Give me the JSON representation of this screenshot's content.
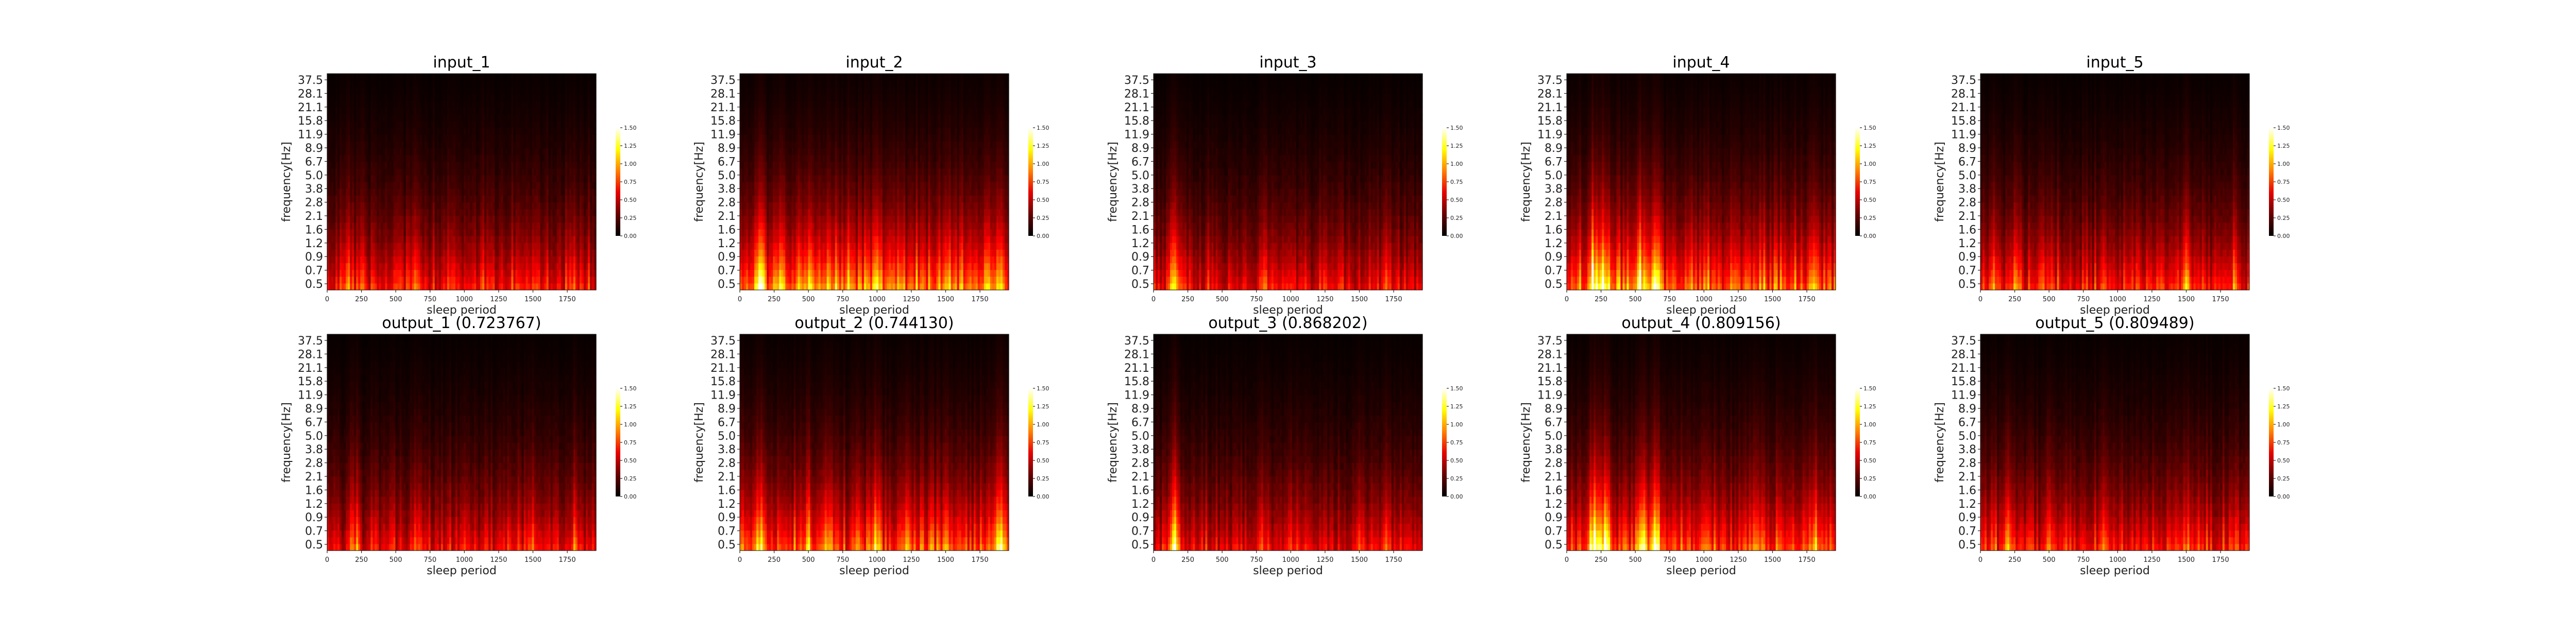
{
  "figure": {
    "background": "#ffffff"
  },
  "chart_data": [
    {
      "type": "heatmap",
      "title": "input_1",
      "xlabel": "sleep period",
      "ylabel": "frequency[Hz]",
      "xlim": [
        0,
        1960
      ],
      "yticks": [
        "0.5",
        "0.7",
        "0.9",
        "1.2",
        "1.6",
        "2.1",
        "2.8",
        "3.8",
        "5.0",
        "6.7",
        "8.9",
        "11.9",
        "15.8",
        "21.1",
        "28.1",
        "37.5"
      ],
      "xticks": [
        0,
        250,
        500,
        750,
        1000,
        1250,
        1500,
        1750
      ],
      "colorbar": {
        "range": [
          0,
          1.5
        ],
        "ticks": [
          "0.00",
          "0.25",
          "0.50",
          "0.75",
          "1.00",
          "1.25",
          "1.50"
        ]
      },
      "colormap": "hot",
      "profile": {
        "peak": 0.9,
        "hot": [
          [
            150,
            1.0
          ],
          [
            250,
            0.8
          ],
          [
            500,
            0.7
          ],
          [
            650,
            0.8
          ],
          [
            900,
            0.7
          ],
          [
            1400,
            0.7
          ],
          [
            1500,
            0.6
          ],
          [
            1800,
            0.8
          ]
        ]
      }
    },
    {
      "type": "heatmap",
      "title": "input_2",
      "xlabel": "sleep period",
      "ylabel": "frequency[Hz]",
      "xlim": [
        0,
        1960
      ],
      "yticks": [
        "0.5",
        "0.7",
        "0.9",
        "1.2",
        "1.6",
        "2.1",
        "2.8",
        "3.8",
        "5.0",
        "6.7",
        "8.9",
        "11.9",
        "15.8",
        "21.1",
        "28.1",
        "37.5"
      ],
      "xticks": [
        0,
        250,
        500,
        750,
        1000,
        1250,
        1500,
        1750
      ],
      "colorbar": {
        "range": [
          0,
          1.5
        ],
        "ticks": [
          "0.00",
          "0.25",
          "0.50",
          "0.75",
          "1.00",
          "1.25",
          "1.50"
        ]
      },
      "colormap": "hot",
      "profile": {
        "peak": 1.3,
        "hot": [
          [
            150,
            1.4
          ],
          [
            300,
            1.0
          ],
          [
            500,
            1.0
          ],
          [
            650,
            1.1
          ],
          [
            1000,
            1.2
          ],
          [
            1100,
            1.0
          ],
          [
            1500,
            0.8
          ],
          [
            1900,
            1.1
          ]
        ]
      }
    },
    {
      "type": "heatmap",
      "title": "input_3",
      "xlabel": "sleep period",
      "ylabel": "frequency[Hz]",
      "xlim": [
        0,
        1960
      ],
      "yticks": [
        "0.5",
        "0.7",
        "0.9",
        "1.2",
        "1.6",
        "2.1",
        "2.8",
        "3.8",
        "5.0",
        "6.7",
        "8.9",
        "11.9",
        "15.8",
        "21.1",
        "28.1",
        "37.5"
      ],
      "xticks": [
        0,
        250,
        500,
        750,
        1000,
        1250,
        1500,
        1750
      ],
      "colorbar": {
        "range": [
          0,
          1.5
        ],
        "ticks": [
          "0.00",
          "0.25",
          "0.50",
          "0.75",
          "1.00",
          "1.25",
          "1.50"
        ]
      },
      "colormap": "hot",
      "profile": {
        "peak": 0.8,
        "hot": [
          [
            150,
            1.3
          ],
          [
            800,
            0.8
          ],
          [
            1000,
            0.7
          ],
          [
            1250,
            0.6
          ],
          [
            1700,
            0.8
          ]
        ]
      }
    },
    {
      "type": "heatmap",
      "title": "input_4",
      "xlabel": "sleep period",
      "ylabel": "frequency[Hz]",
      "xlim": [
        0,
        1960
      ],
      "yticks": [
        "0.5",
        "0.7",
        "0.9",
        "1.2",
        "1.6",
        "2.1",
        "2.8",
        "3.8",
        "5.0",
        "6.7",
        "8.9",
        "11.9",
        "15.8",
        "21.1",
        "28.1",
        "37.5"
      ],
      "xticks": [
        0,
        250,
        500,
        750,
        1000,
        1250,
        1500,
        1750
      ],
      "colorbar": {
        "range": [
          0,
          1.5
        ],
        "ticks": [
          "0.00",
          "0.25",
          "0.50",
          "0.75",
          "1.00",
          "1.25",
          "1.50"
        ]
      },
      "colormap": "hot",
      "profile": {
        "peak": 1.2,
        "hot": [
          [
            200,
            1.5
          ],
          [
            280,
            1.4
          ],
          [
            550,
            1.5
          ],
          [
            650,
            1.4
          ],
          [
            900,
            0.8
          ],
          [
            1800,
            1.0
          ]
        ]
      }
    },
    {
      "type": "heatmap",
      "title": "input_5",
      "xlabel": "sleep period",
      "ylabel": "frequency[Hz]",
      "xlim": [
        0,
        1960
      ],
      "yticks": [
        "0.5",
        "0.7",
        "0.9",
        "1.2",
        "1.6",
        "2.1",
        "2.8",
        "3.8",
        "5.0",
        "6.7",
        "8.9",
        "11.9",
        "15.8",
        "21.1",
        "28.1",
        "37.5"
      ],
      "xticks": [
        0,
        250,
        500,
        750,
        1000,
        1250,
        1500,
        1750
      ],
      "colorbar": {
        "range": [
          0,
          1.5
        ],
        "ticks": [
          "0.00",
          "0.25",
          "0.50",
          "0.75",
          "1.00",
          "1.25",
          "1.50"
        ]
      },
      "colormap": "hot",
      "profile": {
        "peak": 0.9,
        "hot": [
          [
            100,
            1.0
          ],
          [
            250,
            1.0
          ],
          [
            500,
            0.8
          ],
          [
            900,
            0.8
          ],
          [
            1300,
            0.8
          ],
          [
            1500,
            0.9
          ],
          [
            1850,
            0.8
          ]
        ]
      }
    },
    {
      "type": "heatmap",
      "title": "output_1 (0.723767)",
      "xlabel": "sleep period",
      "ylabel": "frequency[Hz]",
      "xlim": [
        0,
        1960
      ],
      "yticks": [
        "0.5",
        "0.7",
        "0.9",
        "1.2",
        "1.6",
        "2.1",
        "2.8",
        "3.8",
        "5.0",
        "6.7",
        "8.9",
        "11.9",
        "15.8",
        "21.1",
        "28.1",
        "37.5"
      ],
      "xticks": [
        0,
        250,
        500,
        750,
        1000,
        1250,
        1500,
        1750
      ],
      "colorbar": {
        "range": [
          0,
          1.5
        ],
        "ticks": [
          "0.00",
          "0.25",
          "0.50",
          "0.75",
          "1.00",
          "1.25",
          "1.50"
        ]
      },
      "colormap": "hot",
      "profile": {
        "peak": 0.8,
        "hot": [
          [
            200,
            0.9
          ],
          [
            650,
            0.8
          ],
          [
            1000,
            0.7
          ],
          [
            1500,
            0.7
          ],
          [
            1800,
            0.8
          ]
        ]
      }
    },
    {
      "type": "heatmap",
      "title": "output_2 (0.744130)",
      "xlabel": "sleep period",
      "ylabel": "frequency[Hz]",
      "xlim": [
        0,
        1960
      ],
      "yticks": [
        "0.5",
        "0.7",
        "0.9",
        "1.2",
        "1.6",
        "2.1",
        "2.8",
        "3.8",
        "5.0",
        "6.7",
        "8.9",
        "11.9",
        "15.8",
        "21.1",
        "28.1",
        "37.5"
      ],
      "xticks": [
        0,
        250,
        500,
        750,
        1000,
        1250,
        1500,
        1750
      ],
      "colorbar": {
        "range": [
          0,
          1.5
        ],
        "ticks": [
          "0.00",
          "0.25",
          "0.50",
          "0.75",
          "1.00",
          "1.25",
          "1.50"
        ]
      },
      "colormap": "hot",
      "profile": {
        "peak": 1.1,
        "hot": [
          [
            150,
            1.2
          ],
          [
            500,
            1.0
          ],
          [
            650,
            1.0
          ],
          [
            1000,
            1.2
          ],
          [
            1500,
            0.9
          ],
          [
            1900,
            1.2
          ]
        ]
      }
    },
    {
      "type": "heatmap",
      "title": "output_3 (0.868202)",
      "xlabel": "sleep period",
      "ylabel": "frequency[Hz]",
      "xlim": [
        0,
        1960
      ],
      "yticks": [
        "0.5",
        "0.7",
        "0.9",
        "1.2",
        "1.6",
        "2.1",
        "2.8",
        "3.8",
        "5.0",
        "6.7",
        "8.9",
        "11.9",
        "15.8",
        "21.1",
        "28.1",
        "37.5"
      ],
      "xticks": [
        0,
        250,
        500,
        750,
        1000,
        1250,
        1500,
        1750
      ],
      "colorbar": {
        "range": [
          0,
          1.5
        ],
        "ticks": [
          "0.00",
          "0.25",
          "0.50",
          "0.75",
          "1.00",
          "1.25",
          "1.50"
        ]
      },
      "colormap": "hot",
      "profile": {
        "peak": 0.8,
        "hot": [
          [
            150,
            1.2
          ],
          [
            800,
            0.7
          ],
          [
            1000,
            0.7
          ],
          [
            1250,
            0.6
          ],
          [
            1700,
            0.7
          ]
        ]
      }
    },
    {
      "type": "heatmap",
      "title": "output_4 (0.809156)",
      "xlabel": "sleep period",
      "ylabel": "frequency[Hz]",
      "xlim": [
        0,
        1960
      ],
      "yticks": [
        "0.5",
        "0.7",
        "0.9",
        "1.2",
        "1.6",
        "2.1",
        "2.8",
        "3.8",
        "5.0",
        "6.7",
        "8.9",
        "11.9",
        "15.8",
        "21.1",
        "28.1",
        "37.5"
      ],
      "xticks": [
        0,
        250,
        500,
        750,
        1000,
        1250,
        1500,
        1750
      ],
      "colorbar": {
        "range": [
          0,
          1.5
        ],
        "ticks": [
          "0.00",
          "0.25",
          "0.50",
          "0.75",
          "1.00",
          "1.25",
          "1.50"
        ]
      },
      "colormap": "hot",
      "profile": {
        "peak": 1.1,
        "hot": [
          [
            200,
            1.5
          ],
          [
            280,
            1.4
          ],
          [
            550,
            1.5
          ],
          [
            650,
            1.3
          ],
          [
            1800,
            1.0
          ]
        ]
      }
    },
    {
      "type": "heatmap",
      "title": "output_5 (0.809489)",
      "xlabel": "sleep period",
      "ylabel": "frequency[Hz]",
      "xlim": [
        0,
        1960
      ],
      "yticks": [
        "0.5",
        "0.7",
        "0.9",
        "1.2",
        "1.6",
        "2.1",
        "2.8",
        "3.8",
        "5.0",
        "6.7",
        "8.9",
        "11.9",
        "15.8",
        "21.1",
        "28.1",
        "37.5"
      ],
      "xticks": [
        0,
        250,
        500,
        750,
        1000,
        1250,
        1500,
        1750
      ],
      "colorbar": {
        "range": [
          0,
          1.5
        ],
        "ticks": [
          "0.00",
          "0.25",
          "0.50",
          "0.75",
          "1.00",
          "1.25",
          "1.50"
        ]
      },
      "colormap": "hot",
      "profile": {
        "peak": 0.9,
        "hot": [
          [
            200,
            1.0
          ],
          [
            500,
            0.8
          ],
          [
            900,
            0.8
          ],
          [
            1500,
            0.9
          ],
          [
            1850,
            0.8
          ]
        ]
      }
    }
  ]
}
